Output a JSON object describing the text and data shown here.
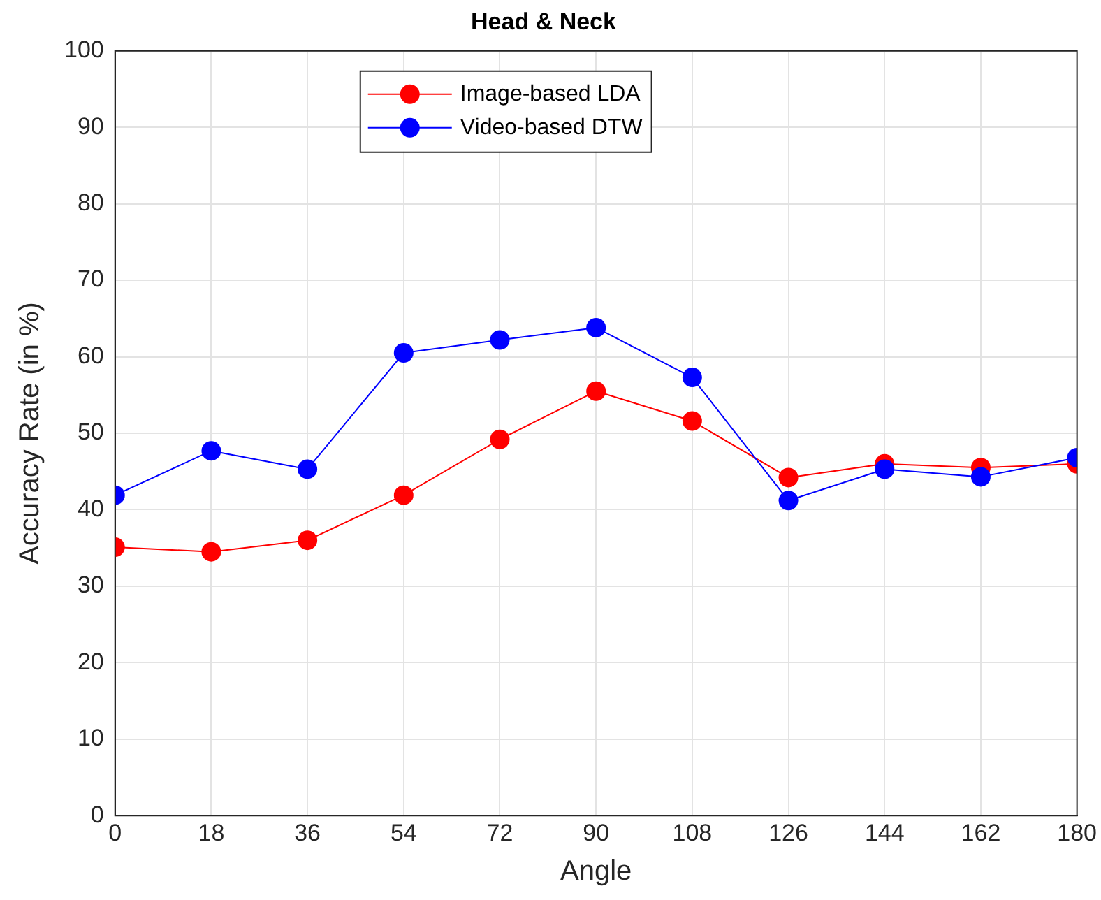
{
  "chart_data": {
    "type": "line",
    "title": "Head & Neck",
    "xlabel": "Angle",
    "ylabel": "Accuracy Rate (in %)",
    "x": [
      0,
      18,
      36,
      54,
      72,
      90,
      108,
      126,
      144,
      162,
      180
    ],
    "series": [
      {
        "name": "Image-based LDA",
        "color": "#ff0000",
        "values": [
          35.1,
          34.5,
          36.0,
          41.9,
          49.2,
          55.5,
          51.6,
          44.2,
          46.0,
          45.5,
          46.0
        ]
      },
      {
        "name": "Video-based DTW",
        "color": "#0000ff",
        "values": [
          41.9,
          47.7,
          45.3,
          60.5,
          62.2,
          63.8,
          57.3,
          41.2,
          45.3,
          44.3,
          46.8
        ]
      }
    ],
    "xlim": [
      0,
      180
    ],
    "xticks": [
      0,
      18,
      36,
      54,
      72,
      90,
      108,
      126,
      144,
      162,
      180
    ],
    "ylim": [
      0,
      100
    ],
    "yticks": [
      0,
      10,
      20,
      30,
      40,
      50,
      60,
      70,
      80,
      90,
      100
    ],
    "grid": true,
    "legend": "top",
    "marker": "circle",
    "line_style": "solid"
  }
}
